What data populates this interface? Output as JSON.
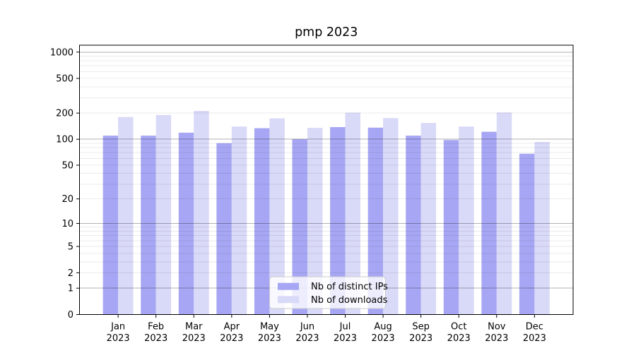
{
  "figure": {
    "title": "pmp 2023"
  },
  "chart_data": {
    "type": "bar",
    "title": "pmp 2023",
    "categories": [
      "Jan",
      "Feb",
      "Mar",
      "Apr",
      "May",
      "Jun",
      "Jul",
      "Aug",
      "Sep",
      "Oct",
      "Nov",
      "Dec"
    ],
    "category_year": "2023",
    "series": [
      {
        "name": "Nb of distinct IPs",
        "color": "#a6a6f4",
        "values": [
          110,
          110,
          119,
          90,
          134,
          100,
          138,
          136,
          110,
          98,
          122,
          68
        ]
      },
      {
        "name": "Nb of downloads",
        "color": "#d9d9f8",
        "values": [
          180,
          190,
          212,
          140,
          174,
          135,
          202,
          175,
          154,
          140,
          203,
          93
        ]
      }
    ],
    "yscale": "log1p",
    "yticks": [
      1000,
      500,
      200,
      100,
      50,
      20,
      10,
      5,
      2,
      1,
      0
    ],
    "ylim": [
      0,
      1200
    ],
    "xlabel": "",
    "ylabel": "",
    "grid": true,
    "legend_position": "lower center"
  },
  "colors": {
    "background": "#ffffff",
    "spine": "#000000",
    "tick": "#000000",
    "grid_major": "rgba(0,0,0,0.30)",
    "grid_minor": "rgba(0,0,0,0.08)",
    "legend_border": "#cccccc",
    "legend_bg": "rgba(255,255,255,0.8)"
  }
}
